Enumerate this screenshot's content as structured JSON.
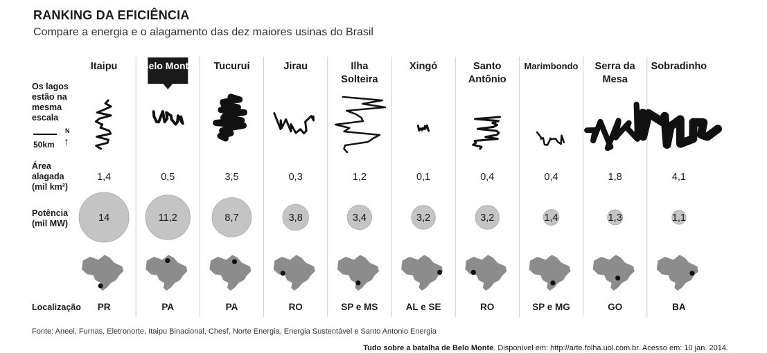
{
  "header": {
    "title": "RANKING DA EFICIÊNCIA",
    "subtitle": "Compare a energia e o alagamento das dez maiores usinas do Brasil"
  },
  "row_labels": {
    "lakes": "Os lagos estão na mesma escala",
    "scale": "50km",
    "north": "N",
    "area": "Área alagada (mil km²)",
    "power": "Potência (mil MW)",
    "location": "Localização"
  },
  "chart_data": {
    "type": "table",
    "title": "RANKING DA EFICIÊNCIA",
    "subtitle": "Compare a energia e o alagamento das dez maiores usinas do Brasil",
    "highlight": "Belo Monte",
    "plants": [
      {
        "name": "Itaipu",
        "area": "1,4",
        "area_value": 1.4,
        "power": "14",
        "power_value": 14,
        "location": "PR",
        "dot": [
          -0.1,
          0.75
        ]
      },
      {
        "name": "Belo Monte",
        "area": "0,5",
        "area_value": 0.5,
        "power": "11,2",
        "power_value": 11.2,
        "location": "PA",
        "dot": [
          0.05,
          -0.55
        ]
      },
      {
        "name": "Tucuruí",
        "area": "3,5",
        "area_value": 3.5,
        "power": "8,7",
        "power_value": 8.7,
        "location": "PA",
        "dot": [
          0.2,
          -0.5
        ]
      },
      {
        "name": "Jirau",
        "area": "0,3",
        "area_value": 0.3,
        "power": "3,8",
        "power_value": 3.8,
        "location": "RO",
        "dot": [
          -0.55,
          0.1
        ]
      },
      {
        "name": "Ilha Solteira",
        "area": "1,2",
        "area_value": 1.2,
        "power": "3,4",
        "power_value": 3.4,
        "location": "SP e MS",
        "dot": [
          0.0,
          0.6
        ]
      },
      {
        "name": "Xingó",
        "area": "0,1",
        "area_value": 0.1,
        "power": "3,2",
        "power_value": 3.2,
        "location": "AL e SE",
        "dot": [
          0.85,
          0.05
        ]
      },
      {
        "name": "Santo Antônio",
        "area": "0,4",
        "area_value": 0.4,
        "power": "3,2",
        "power_value": 3.2,
        "location": "RO",
        "dot": [
          -0.6,
          0.05
        ]
      },
      {
        "name": "Marimbondo",
        "area": "0,4",
        "area_value": 0.4,
        "power": "1,4",
        "power_value": 1.4,
        "location": "SP e MG",
        "dot": [
          0.15,
          0.6
        ]
      },
      {
        "name": "Serra da Mesa",
        "area": "1,8",
        "area_value": 1.8,
        "power": "1,3",
        "power_value": 1.3,
        "location": "GO",
        "dot": [
          0.2,
          0.35
        ]
      },
      {
        "name": "Sobradinho",
        "area": "4,1",
        "area_value": 4.1,
        "power": "1,1",
        "power_value": 1.1,
        "location": "BA",
        "dot": [
          0.7,
          0.1
        ]
      }
    ]
  },
  "footer": {
    "source": "Fonte: Aneel, Furnas, Eletronorte, Itaipu Binacional, Chesf, Norte Energia, Energia Sustentável e Santo Antonio Energia",
    "credit_title": "Tudo sobre a batalha de Belo Monte",
    "credit_rest": ". Disponível em: http://arte.folha.uol.com.br. Acesso em: 10 jan. 2014."
  },
  "colors": {
    "bubble": "#c4c4c4",
    "bubble_edge": "#b0b0b0",
    "map": "#8c8c8c",
    "lake": "#111111",
    "divider": "#cccccc",
    "highlight_box": "#1a1a1a"
  }
}
